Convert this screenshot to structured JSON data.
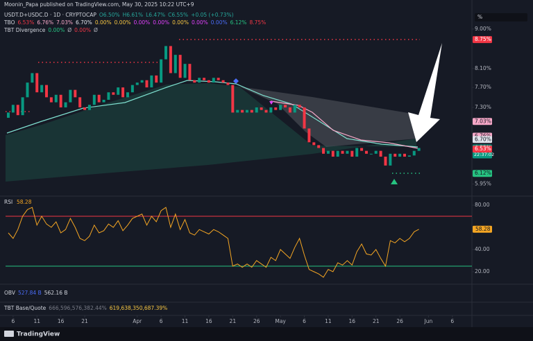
{
  "header": {
    "published": "Moonin_Papa published on TradingView.com, May 30, 2025 10:22 UTC+9",
    "lines": [
      [
        {
          "text": "USDT.D+USDC.D · 1D · CRYPTOCAP",
          "color": "#d1d4dc"
        },
        {
          "text": "O6.50%",
          "color": "#26a69a"
        },
        {
          "text": "H6.61%",
          "color": "#26a69a"
        },
        {
          "text": "L6.47%",
          "color": "#26a69a"
        },
        {
          "text": "C6.55%",
          "color": "#26a69a"
        },
        {
          "text": "+0.05 (+0.73%)",
          "color": "#26a69a"
        }
      ],
      [
        {
          "text": "TBO",
          "color": "#d1d4dc"
        },
        {
          "text": "6.53%",
          "color": "#f23645"
        },
        {
          "text": "6.76%",
          "color": "#f7a8c8"
        },
        {
          "text": "7.03%",
          "color": "#f7a8c8"
        },
        {
          "text": "6.70%",
          "color": "#e0e3eb"
        },
        {
          "text": "0.00%",
          "color": "#f5c542"
        },
        {
          "text": "0.00%",
          "color": "#f5c542"
        },
        {
          "text": "0.00%",
          "color": "#e040fb"
        },
        {
          "text": "0.00%",
          "color": "#e040fb"
        },
        {
          "text": "0.00%",
          "color": "#f5c542"
        },
        {
          "text": "0.00%",
          "color": "#e040fb"
        },
        {
          "text": "0.00%",
          "color": "#4a6cf7"
        },
        {
          "text": "6.12%",
          "color": "#26c281"
        },
        {
          "text": "8.75%",
          "color": "#f23645"
        }
      ],
      [
        {
          "text": "TBT Divergence",
          "color": "#d1d4dc"
        },
        {
          "text": "0.00%",
          "color": "#26c281"
        },
        {
          "text": "Ø",
          "color": "#b2b5be"
        },
        {
          "text": "0.00%",
          "color": "#f23645"
        },
        {
          "text": "Ø",
          "color": "#b2b5be"
        }
      ]
    ],
    "unit_button": "%"
  },
  "chart_data": [
    {
      "type": "candlestick",
      "log": true,
      "up_color": "#089981",
      "down_color": "#f23645",
      "open": [
        7.1,
        7.2,
        7.35,
        7.15,
        7.5,
        7.8,
        8.0,
        7.6,
        7.75,
        7.5,
        7.4,
        7.55,
        7.3,
        7.4,
        7.65,
        7.5,
        7.3,
        7.25,
        7.35,
        7.55,
        7.4,
        7.45,
        7.6,
        7.55,
        7.7,
        7.5,
        7.6,
        7.75,
        7.8,
        7.85,
        7.7,
        7.95,
        7.8,
        8.3,
        8.6,
        8.0,
        8.4,
        7.9,
        8.2,
        7.85,
        7.8,
        7.9,
        7.85,
        7.8,
        7.9,
        7.85,
        7.8,
        7.75,
        7.2,
        7.25,
        7.2,
        7.25,
        7.2,
        7.3,
        7.25,
        7.2,
        7.3,
        7.25,
        7.35,
        7.3,
        7.2,
        7.35,
        7.3,
        6.9,
        6.65,
        6.6,
        6.55,
        6.45,
        6.5,
        6.4,
        6.5,
        6.45,
        6.5,
        6.4,
        6.55,
        6.5,
        6.45,
        6.45,
        6.5,
        6.4,
        6.25,
        6.45,
        6.4,
        6.45,
        6.4,
        6.42,
        6.5
      ],
      "close": [
        7.2,
        7.35,
        7.15,
        7.5,
        7.8,
        8.0,
        7.6,
        7.75,
        7.5,
        7.4,
        7.55,
        7.3,
        7.4,
        7.65,
        7.5,
        7.3,
        7.25,
        7.35,
        7.55,
        7.4,
        7.45,
        7.6,
        7.55,
        7.7,
        7.5,
        7.6,
        7.75,
        7.8,
        7.85,
        7.7,
        7.95,
        7.8,
        8.3,
        8.6,
        8.0,
        8.4,
        7.9,
        8.2,
        7.85,
        7.8,
        7.9,
        7.85,
        7.8,
        7.9,
        7.85,
        7.8,
        7.75,
        7.2,
        7.25,
        7.2,
        7.25,
        7.2,
        7.3,
        7.25,
        7.2,
        7.3,
        7.25,
        7.35,
        7.3,
        7.2,
        7.35,
        7.3,
        6.9,
        6.65,
        6.6,
        6.55,
        6.45,
        6.5,
        6.4,
        6.5,
        6.45,
        6.5,
        6.4,
        6.55,
        6.5,
        6.45,
        6.45,
        6.5,
        6.4,
        6.25,
        6.45,
        6.4,
        6.45,
        6.4,
        6.42,
        6.5,
        6.55
      ],
      "xlim": [
        -1.74,
        97.1
      ],
      "ylim": [
        5.77,
        9.2
      ],
      "yticks": [
        {
          "value": 9,
          "label": "9.00%"
        },
        {
          "value": 8.1,
          "label": "8.10%"
        },
        {
          "value": 7.7,
          "label": "7.70%"
        },
        {
          "value": 7.3,
          "label": "7.30%"
        },
        {
          "value": 5.95,
          "label": "5.95%"
        }
      ],
      "xticks": [
        {
          "value": 1,
          "label": "6"
        },
        {
          "value": 6,
          "label": "11"
        },
        {
          "value": 11,
          "label": "16"
        },
        {
          "value": 16,
          "label": "21"
        },
        {
          "value": 27,
          "label": "Apr"
        },
        {
          "value": 32,
          "label": "6"
        },
        {
          "value": 37,
          "label": "11"
        },
        {
          "value": 42,
          "label": "16"
        },
        {
          "value": 47,
          "label": "21"
        },
        {
          "value": 52,
          "label": "26"
        },
        {
          "value": 57,
          "label": "May"
        },
        {
          "value": 62,
          "label": "6"
        },
        {
          "value": 67,
          "label": "11"
        },
        {
          "value": 72,
          "label": "16"
        },
        {
          "value": 77,
          "label": "21"
        },
        {
          "value": 82,
          "label": "26"
        },
        {
          "value": 88,
          "label": "Jun"
        },
        {
          "value": 93,
          "label": "6"
        }
      ],
      "price_labels": [
        {
          "value": 8.75,
          "label": "8.75%",
          "color": "#f23645",
          "text_color": "#ffffff"
        },
        {
          "value": 7.03,
          "label": "7.03%",
          "color": "#f7a8c8",
          "text_color": "#131722"
        },
        {
          "value": 6.76,
          "label": "6.76%",
          "color": "#f7a8c8",
          "text_color": "#131722"
        },
        {
          "value": 6.7,
          "label": "6.70%",
          "color": "#e0e3eb",
          "text_color": "#131722"
        },
        {
          "value": 6.55,
          "label": "6.55%",
          "color": "#089981",
          "text_color": "#ffffff",
          "countdown": "22:37:02"
        },
        {
          "value": 6.53,
          "label": "6.53%",
          "color": "#f23645",
          "text_color": "#ffffff"
        },
        {
          "value": 6.12,
          "label": "6.12%",
          "color": "#26c281",
          "text_color": "#131722"
        }
      ]
    },
    {
      "type": "line",
      "title": "RSI",
      "color": "#f5a623",
      "values": [
        55,
        50,
        58,
        70,
        76,
        78,
        62,
        70,
        63,
        60,
        65,
        55,
        58,
        68,
        60,
        50,
        48,
        52,
        62,
        55,
        57,
        63,
        60,
        66,
        57,
        62,
        68,
        70,
        72,
        62,
        70,
        65,
        75,
        78,
        60,
        72,
        58,
        67,
        55,
        53,
        58,
        56,
        54,
        58,
        56,
        53,
        50,
        25,
        27,
        24,
        27,
        24,
        30,
        27,
        24,
        33,
        30,
        40,
        36,
        32,
        42,
        50,
        35,
        22,
        20,
        18,
        15,
        22,
        20,
        28,
        26,
        30,
        26,
        38,
        45,
        36,
        35,
        40,
        32,
        25,
        48,
        46,
        50,
        47,
        50,
        56,
        58.28
      ],
      "xlim": [
        -1.74,
        97.1
      ],
      "ylim": [
        11.9,
        86.9
      ],
      "yticks": [
        {
          "value": 80,
          "label": "80.00"
        },
        {
          "value": 40,
          "label": "40.00"
        },
        {
          "value": 20,
          "label": "20.00"
        }
      ],
      "levels": [
        {
          "value": 70,
          "color": "#f23645"
        },
        {
          "value": 25,
          "color": "#26c281"
        }
      ]
    }
  ],
  "panes": {
    "obv": [
      {
        "text": "OBV",
        "color": "#d1d4dc"
      },
      {
        "text": "527.84 B",
        "color": "#4a6cf7"
      },
      {
        "text": "562.16 B",
        "color": "#d1d4dc"
      }
    ],
    "tbt": [
      {
        "text": "TBT Base/Quote",
        "color": "#d1d4dc"
      },
      {
        "text": "666,596,576,382.44%",
        "color": "#787b86"
      },
      {
        "text": "619,638,350,687.39%",
        "color": "#f5c542"
      }
    ]
  },
  "footer": {
    "brand": "TradingView"
  }
}
